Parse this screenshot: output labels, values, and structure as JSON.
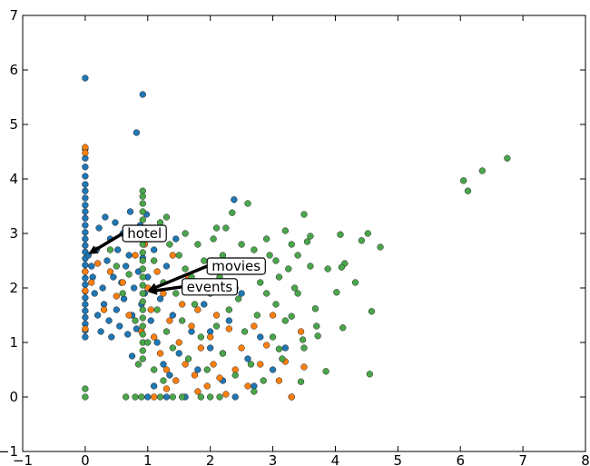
{
  "chart_data": {
    "type": "scatter",
    "title": "",
    "xlabel": "",
    "ylabel": "",
    "xlim": [
      -1,
      8
    ],
    "ylim": [
      -1,
      7
    ],
    "xticks": [
      "−1",
      "0",
      "1",
      "2",
      "3",
      "4",
      "5",
      "6",
      "7",
      "8"
    ],
    "yticks": [
      "−1",
      "0",
      "1",
      "2",
      "3",
      "4",
      "5",
      "6",
      "7"
    ],
    "xtick_values": [
      -1,
      0,
      1,
      2,
      3,
      4,
      5,
      6,
      7,
      8
    ],
    "ytick_values": [
      -1,
      0,
      1,
      2,
      3,
      4,
      5,
      6,
      7
    ],
    "grid": false,
    "series": [
      {
        "color": "#1f77b4",
        "points": [
          [
            0,
            5.85
          ],
          [
            0.92,
            5.55
          ],
          [
            0.82,
            4.85
          ],
          [
            2.38,
            3.62
          ],
          [
            0,
            4.55
          ],
          [
            0,
            4.38
          ],
          [
            0,
            4.22
          ],
          [
            0,
            4.05
          ],
          [
            0,
            3.9
          ],
          [
            0,
            3.78
          ],
          [
            0,
            3.65
          ],
          [
            0,
            3.52
          ],
          [
            0,
            3.4
          ],
          [
            0,
            3.28
          ],
          [
            0,
            3.15
          ],
          [
            0,
            3.02
          ],
          [
            0,
            2.9
          ],
          [
            0,
            2.78
          ],
          [
            0,
            2.66
          ],
          [
            0,
            2.54
          ],
          [
            0,
            2.42
          ],
          [
            0,
            2.3
          ],
          [
            0,
            2.18
          ],
          [
            0,
            2.06
          ],
          [
            0,
            1.94
          ],
          [
            0,
            1.82
          ],
          [
            0,
            1.7
          ],
          [
            0,
            1.58
          ],
          [
            0,
            1.46
          ],
          [
            0,
            1.34
          ],
          [
            0,
            1.22
          ],
          [
            0,
            1.1
          ],
          [
            0.05,
            2.6
          ],
          [
            0.1,
            2.4
          ],
          [
            0.12,
            2.2
          ],
          [
            0.15,
            1.9
          ],
          [
            0.18,
            2.7
          ],
          [
            0.2,
            1.5
          ],
          [
            0.22,
            3.1
          ],
          [
            0.25,
            1.2
          ],
          [
            0.28,
            2.0
          ],
          [
            0.3,
            1.7
          ],
          [
            0.32,
            3.3
          ],
          [
            0.35,
            2.5
          ],
          [
            0.38,
            1.4
          ],
          [
            0.4,
            2.9
          ],
          [
            0.42,
            1.1
          ],
          [
            0.45,
            2.2
          ],
          [
            0.48,
            3.2
          ],
          [
            0.5,
            1.6
          ],
          [
            0.52,
            2.7
          ],
          [
            0.55,
            1.3
          ],
          [
            0.58,
            2.1
          ],
          [
            0.6,
            3.0
          ],
          [
            0.62,
            1.8
          ],
          [
            0.65,
            2.4
          ],
          [
            0.68,
            1.15
          ],
          [
            0.7,
            2.6
          ],
          [
            0.72,
            3.4
          ],
          [
            0.75,
            1.5
          ],
          [
            0.78,
            2.0
          ],
          [
            0.8,
            2.9
          ],
          [
            0.82,
            1.25
          ],
          [
            0.85,
            2.3
          ],
          [
            0.88,
            3.15
          ],
          [
            0.9,
            1.7
          ],
          [
            0.92,
            2.55
          ],
          [
            0.95,
            1.9
          ],
          [
            1.0,
            2.2
          ],
          [
            1.05,
            1.4
          ],
          [
            1.1,
            2.7
          ],
          [
            1.15,
            1.0
          ],
          [
            1.2,
            1.8
          ],
          [
            1.25,
            0.6
          ],
          [
            1.3,
            2.4
          ],
          [
            1.35,
            0.4
          ],
          [
            1.4,
            1.5
          ],
          [
            1.45,
            2.9
          ],
          [
            1.5,
            0.8
          ],
          [
            1.6,
            2.1
          ],
          [
            1.7,
            1.2
          ],
          [
            1.8,
            0.5
          ],
          [
            1.9,
            1.7
          ],
          [
            2.0,
            0.9
          ],
          [
            2.1,
            2.4
          ],
          [
            2.2,
            0.3
          ],
          [
            2.3,
            1.4
          ],
          [
            2.4,
            0.0
          ],
          [
            2.5,
            1.9
          ],
          [
            2.6,
            0.7
          ],
          [
            2.7,
            0.2
          ],
          [
            2.8,
            1.1
          ],
          [
            3.0,
            0.5
          ],
          [
            3.2,
            0.9
          ],
          [
            3.3,
            0.0
          ],
          [
            1.0,
            0.0
          ],
          [
            1.3,
            0.0
          ],
          [
            0.98,
            3.35
          ],
          [
            1.05,
            3.05
          ],
          [
            0.75,
            0.75
          ],
          [
            1.1,
            0.2
          ],
          [
            1.6,
            0.0
          ],
          [
            2.0,
            1.2
          ]
        ]
      },
      {
        "color": "#ff7f0e",
        "points": [
          [
            0,
            4.58
          ],
          [
            0,
            4.48
          ],
          [
            0,
            2.3
          ],
          [
            0,
            1.95
          ],
          [
            0,
            1.25
          ],
          [
            0.1,
            2.1
          ],
          [
            0.2,
            2.45
          ],
          [
            0.3,
            1.6
          ],
          [
            0.4,
            2.3
          ],
          [
            0.5,
            1.85
          ],
          [
            0.6,
            2.1
          ],
          [
            0.7,
            1.5
          ],
          [
            0.8,
            2.6
          ],
          [
            0.9,
            1.2
          ],
          [
            0.95,
            2.8
          ],
          [
            1.0,
            2.0
          ],
          [
            1.05,
            1.6
          ],
          [
            1.1,
            1.1
          ],
          [
            1.15,
            2.3
          ],
          [
            1.2,
            0.8
          ],
          [
            1.25,
            1.9
          ],
          [
            1.3,
            0.5
          ],
          [
            1.35,
            1.4
          ],
          [
            1.4,
            2.6
          ],
          [
            1.45,
            0.3
          ],
          [
            1.5,
            1.0
          ],
          [
            1.55,
            1.7
          ],
          [
            1.6,
            0.6
          ],
          [
            1.65,
            2.2
          ],
          [
            1.7,
            1.3
          ],
          [
            1.75,
            0.4
          ],
          [
            1.8,
            1.6
          ],
          [
            1.85,
            0.9
          ],
          [
            1.9,
            2.0
          ],
          [
            1.95,
            0.2
          ],
          [
            2.0,
            1.1
          ],
          [
            2.05,
            0.6
          ],
          [
            2.1,
            1.5
          ],
          [
            2.15,
            0.35
          ],
          [
            2.2,
            0.8
          ],
          [
            2.3,
            1.25
          ],
          [
            2.4,
            0.5
          ],
          [
            2.5,
            0.9
          ],
          [
            2.6,
            0.2
          ],
          [
            2.7,
            1.3
          ],
          [
            2.8,
            0.6
          ],
          [
            2.9,
            0.95
          ],
          [
            3.0,
            1.5
          ],
          [
            3.1,
            0.3
          ],
          [
            3.2,
            0.65
          ],
          [
            3.3,
            0.0
          ],
          [
            3.5,
            0.55
          ],
          [
            3.45,
            1.2
          ],
          [
            1.1,
            0.0
          ],
          [
            1.3,
            0.15
          ],
          [
            2.25,
            0.05
          ],
          [
            1.8,
            0.1
          ]
        ]
      },
      {
        "color": "#4aa64a",
        "points": [
          [
            0,
            0.15
          ],
          [
            0,
            0.0
          ],
          [
            0.92,
            3.78
          ],
          [
            0.92,
            3.68
          ],
          [
            0.92,
            3.55
          ],
          [
            0.92,
            3.4
          ],
          [
            0.92,
            3.25
          ],
          [
            0.92,
            3.1
          ],
          [
            0.92,
            2.95
          ],
          [
            0.92,
            2.8
          ],
          [
            0.92,
            2.65
          ],
          [
            0.92,
            2.5
          ],
          [
            0.92,
            2.35
          ],
          [
            0.92,
            2.2
          ],
          [
            0.92,
            2.05
          ],
          [
            0.92,
            1.9
          ],
          [
            0.92,
            1.75
          ],
          [
            0.92,
            1.6
          ],
          [
            0.92,
            1.45
          ],
          [
            0.92,
            1.3
          ],
          [
            0.92,
            1.15
          ],
          [
            0.92,
            1.0
          ],
          [
            0.92,
            0.85
          ],
          [
            0.92,
            0.7
          ],
          [
            6.75,
            4.38
          ],
          [
            6.35,
            4.15
          ],
          [
            6.05,
            3.97
          ],
          [
            6.12,
            3.78
          ],
          [
            4.72,
            2.75
          ],
          [
            4.52,
            3.0
          ],
          [
            4.58,
            1.57
          ],
          [
            4.55,
            0.42
          ],
          [
            4.42,
            2.87
          ],
          [
            4.32,
            2.1
          ],
          [
            4.15,
            2.45
          ],
          [
            4.08,
            2.98
          ],
          [
            4.1,
            2.38
          ],
          [
            4.12,
            1.27
          ],
          [
            4.02,
            1.92
          ],
          [
            3.88,
            2.35
          ],
          [
            3.85,
            0.47
          ],
          [
            3.72,
            1.12
          ],
          [
            3.68,
            1.62
          ],
          [
            3.6,
            2.95
          ],
          [
            3.55,
            2.85
          ],
          [
            3.5,
            3.35
          ],
          [
            3.48,
            1.05
          ],
          [
            3.45,
            0.28
          ],
          [
            3.4,
            2.6
          ],
          [
            3.35,
            2.0
          ],
          [
            3.3,
            1.48
          ],
          [
            3.25,
            2.35
          ],
          [
            3.2,
            3.05
          ],
          [
            3.1,
            0.88
          ],
          [
            3.05,
            2.5
          ],
          [
            0.4,
            2.7
          ],
          [
            0.5,
            2.4
          ],
          [
            0.6,
            1.9
          ],
          [
            0.7,
            2.25
          ],
          [
            0.8,
            1.4
          ],
          [
            1.0,
            2.9
          ],
          [
            1.1,
            2.5
          ],
          [
            1.15,
            1.6
          ],
          [
            1.2,
            3.2
          ],
          [
            1.25,
            2.1
          ],
          [
            1.3,
            1.2
          ],
          [
            1.35,
            2.8
          ],
          [
            1.4,
            0.9
          ],
          [
            1.45,
            1.9
          ],
          [
            1.5,
            2.6
          ],
          [
            1.55,
            1.4
          ],
          [
            1.6,
            3.0
          ],
          [
            1.65,
            0.7
          ],
          [
            1.7,
            2.2
          ],
          [
            1.75,
            1.7
          ],
          [
            1.8,
            2.8
          ],
          [
            1.85,
            1.1
          ],
          [
            1.9,
            2.5
          ],
          [
            1.95,
            0.5
          ],
          [
            2.0,
            1.9
          ],
          [
            2.05,
            2.9
          ],
          [
            2.1,
            1.3
          ],
          [
            2.15,
            2.2
          ],
          [
            2.2,
            0.8
          ],
          [
            2.25,
            3.1
          ],
          [
            2.3,
            1.6
          ],
          [
            2.35,
            2.5
          ],
          [
            2.4,
            0.4
          ],
          [
            2.45,
            1.8
          ],
          [
            2.5,
            2.8
          ],
          [
            2.55,
            1.2
          ],
          [
            2.6,
            2.3
          ],
          [
            2.65,
            0.6
          ],
          [
            2.7,
            2.7
          ],
          [
            2.75,
            1.5
          ],
          [
            2.8,
            2.1
          ],
          [
            2.85,
            0.3
          ],
          [
            2.9,
            1.9
          ],
          [
            2.95,
            2.6
          ],
          [
            3.0,
            1.1
          ],
          [
            3.05,
            1.7
          ],
          [
            3.1,
            2.2
          ],
          [
            3.15,
            0.7
          ],
          [
            3.2,
            1.4
          ],
          [
            3.3,
            2.8
          ],
          [
            3.4,
            1.9
          ],
          [
            3.5,
            0.9
          ],
          [
            3.6,
            2.4
          ],
          [
            3.7,
            1.3
          ],
          [
            2.6,
            3.55
          ],
          [
            2.35,
            3.38
          ],
          [
            2.1,
            3.1
          ],
          [
            1.3,
            3.3
          ],
          [
            1.2,
            0.0
          ],
          [
            1.4,
            0.0
          ],
          [
            1.55,
            0.0
          ],
          [
            0.8,
            0.0
          ],
          [
            0.65,
            0.0
          ],
          [
            0.9,
            0.0
          ],
          [
            2.15,
            0.0
          ],
          [
            2.0,
            0.0
          ],
          [
            1.85,
            0.0
          ],
          [
            2.7,
            0.1
          ],
          [
            1.0,
            1.0
          ],
          [
            1.1,
            0.5
          ],
          [
            1.25,
            0.3
          ],
          [
            0.85,
            0.6
          ],
          [
            1.6,
            2.35
          ],
          [
            2.2,
            2.6
          ],
          [
            2.4,
            2.0
          ],
          [
            2.9,
            2.9
          ]
        ]
      }
    ],
    "annotations": [
      {
        "text": "hotel",
        "point": [
          0.05,
          2.62
        ],
        "label_at": [
          0.6,
          3.0
        ]
      },
      {
        "text": "movies",
        "point": [
          1.0,
          1.95
        ],
        "label_at": [
          1.95,
          2.4
        ]
      },
      {
        "text": "events",
        "point": [
          1.0,
          1.93
        ],
        "label_at": [
          1.55,
          2.02
        ]
      }
    ]
  }
}
